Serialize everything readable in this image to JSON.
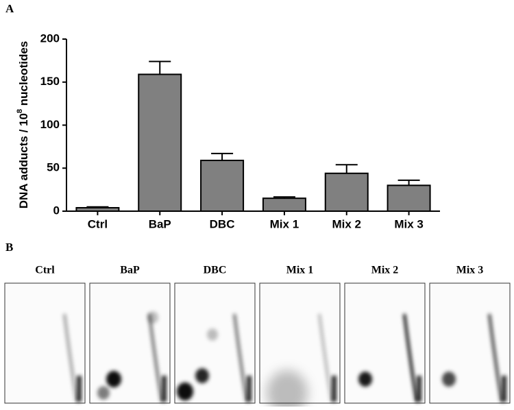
{
  "panels": {
    "a": "A",
    "b": "B"
  },
  "chart_data": {
    "type": "bar",
    "ylabel": "DNA adducts / 10",
    "ylabel_exponent": "8",
    "ylabel_suffix": " nucleotides",
    "categories": [
      "Ctrl",
      "BaP",
      "DBC",
      "Mix 1",
      "Mix 2",
      "Mix 3"
    ],
    "values": [
      4,
      159,
      59,
      15,
      44,
      30
    ],
    "errors": [
      1,
      15,
      8,
      1.5,
      10,
      6
    ],
    "color": "#808080",
    "ylim": [
      0,
      200
    ],
    "yticks": [
      0,
      50,
      100,
      150,
      200
    ],
    "grid": false
  },
  "blots": [
    "Ctrl",
    "BaP",
    "DBC",
    "Mix 1",
    "Mix 2",
    "Mix 3"
  ]
}
